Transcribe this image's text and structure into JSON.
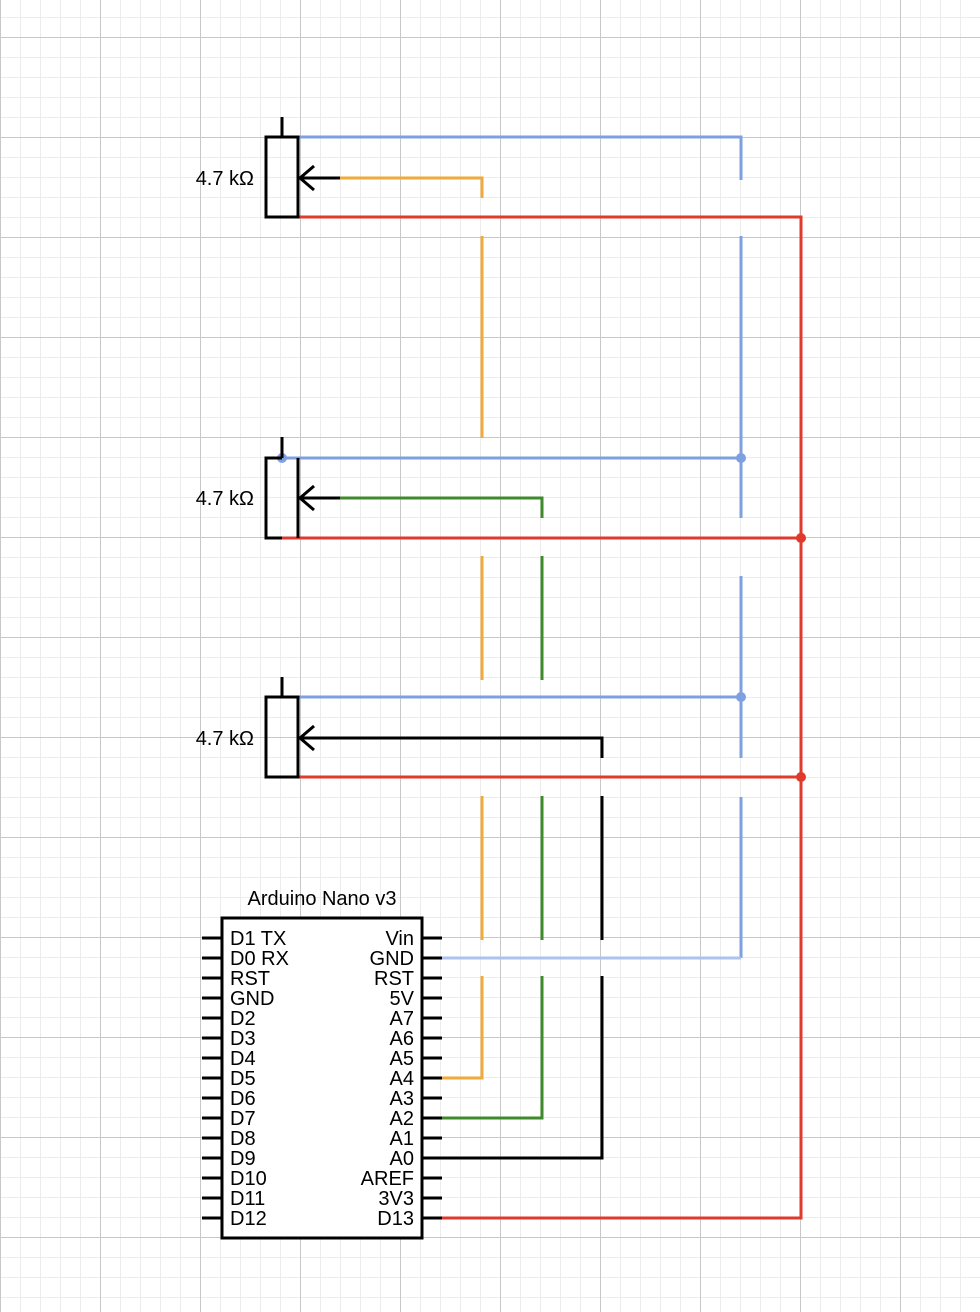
{
  "potentiometers": [
    {
      "label": "4.7 kΩ"
    },
    {
      "label": "4.7 kΩ"
    },
    {
      "label": "4.7 kΩ"
    }
  ],
  "arduino": {
    "title": "Arduino Nano v3",
    "left_pins": [
      "D1 TX",
      "D0 RX",
      "RST",
      "GND",
      "D2",
      "D3",
      "D4",
      "D5",
      "D6",
      "D7",
      "D8",
      "D9",
      "D10",
      "D11",
      "D12"
    ],
    "right_pins": [
      "Vin",
      "GND",
      "RST",
      "5V",
      "A7",
      "A6",
      "A5",
      "A4",
      "A3",
      "A2",
      "A1",
      "A0",
      "AREF",
      "3V3",
      "D13"
    ]
  },
  "wire_colors": {
    "ground": "#7ea0e0",
    "ground_light": "#adc2ee",
    "power": "#e03a2c",
    "signal_a4": "#f0a93b",
    "signal_a2": "#3f8a2c",
    "signal_a0": "#000000"
  }
}
